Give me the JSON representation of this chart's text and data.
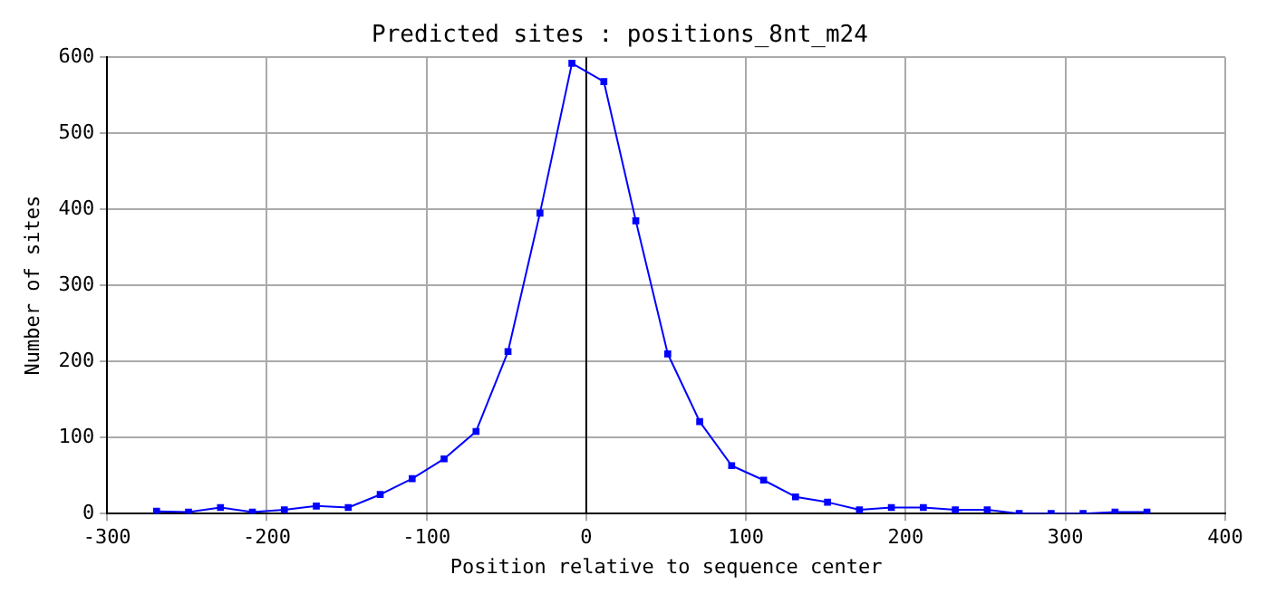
{
  "chart_data": {
    "type": "line",
    "title": "Predicted sites : positions_8nt_m24",
    "xlabel": "Position relative to sequence center",
    "ylabel": "Number of sites",
    "x": [
      -269,
      -249,
      -229,
      -209,
      -189,
      -169,
      -149,
      -129,
      -109,
      -89,
      -69,
      -49,
      -29,
      -9,
      11,
      31,
      51,
      71,
      91,
      111,
      131,
      151,
      171,
      191,
      211,
      231,
      251,
      271,
      291,
      311,
      331,
      351
    ],
    "series": [
      {
        "color": "#0000ff",
        "values": [
          3,
          2,
          8,
          2,
          5,
          10,
          8,
          25,
          46,
          72,
          108,
          213,
          395,
          592,
          568,
          385,
          210,
          121,
          63,
          44,
          22,
          15,
          5,
          8,
          8,
          5,
          5,
          0,
          0,
          0,
          2,
          2
        ]
      }
    ],
    "xlim": [
      -300,
      400
    ],
    "xticks": [
      -300,
      -200,
      -100,
      0,
      100,
      200,
      300,
      400
    ],
    "ylim": [
      0,
      600
    ],
    "yticks": [
      0,
      100,
      200,
      300,
      400,
      500,
      600
    ],
    "ref_lines": [
      {
        "axis": "x",
        "value": 0,
        "color": "#000000"
      }
    ],
    "grid": true,
    "legend": false,
    "marker": "square",
    "line_style": "solid"
  }
}
